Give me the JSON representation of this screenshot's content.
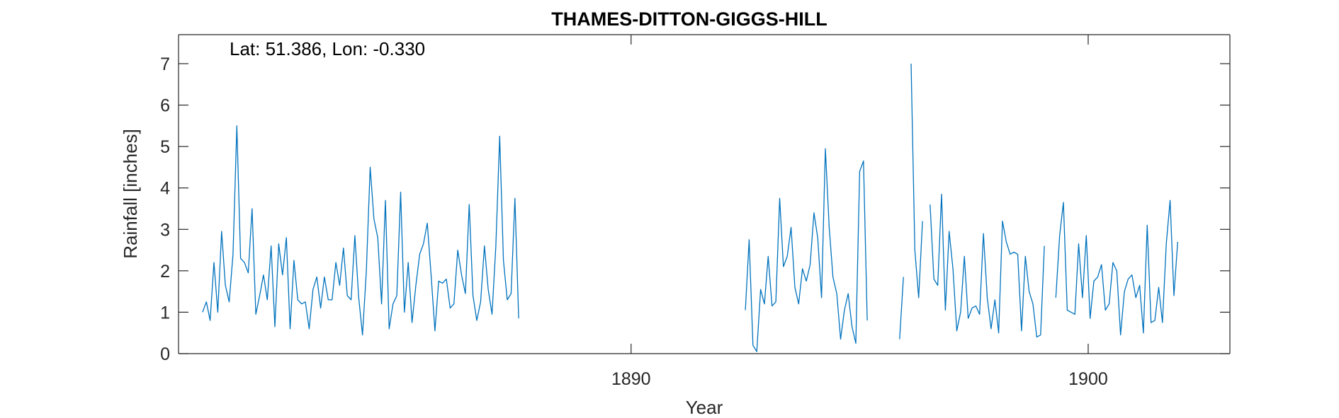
{
  "chart_data": {
    "type": "line",
    "title": "THAMES-DITTON-GIGGS-HILL",
    "annotation": "Lat: 51.386, Lon: -0.330",
    "xlabel": "Year",
    "ylabel": "Rainfall [inches]",
    "xlim": [
      1880.1,
      1903.1
    ],
    "ylim": [
      0,
      7.7
    ],
    "xticks": [
      1890,
      1900
    ],
    "xtick_labels": [
      "1890",
      "1900"
    ],
    "yticks": [
      0,
      1,
      2,
      3,
      4,
      5,
      6,
      7
    ],
    "ytick_labels": [
      "0",
      "1",
      "2",
      "3",
      "4",
      "5",
      "6",
      "7"
    ],
    "grid": false,
    "series_color": "#0072BD",
    "segments": [
      {
        "start_year": 1880.625,
        "values": [
          1.0,
          1.25,
          0.8,
          2.2,
          1.0,
          2.95,
          1.65,
          1.25,
          2.4,
          5.5,
          2.3,
          2.2,
          1.95,
          3.5,
          0.95,
          1.4,
          1.9,
          1.3,
          2.6,
          0.65,
          2.65,
          1.9,
          2.8,
          0.6,
          2.25,
          1.3,
          1.2,
          1.25,
          0.6,
          1.55,
          1.85,
          1.1,
          1.85,
          1.3,
          1.3,
          2.2,
          1.65,
          2.55,
          1.4,
          1.3,
          2.85,
          1.35,
          0.45,
          2.0,
          4.5,
          3.25,
          2.8,
          1.2,
          3.7,
          0.6,
          1.2,
          1.4,
          3.9,
          1.0,
          2.2,
          0.75,
          1.65,
          2.4,
          2.65,
          3.15,
          1.9,
          0.55,
          1.75,
          1.7,
          1.8,
          1.1,
          1.2,
          2.5,
          1.9,
          1.45,
          3.6,
          1.4,
          0.8,
          1.25,
          2.6,
          1.55,
          0.95,
          2.6,
          5.25,
          2.25,
          1.3,
          1.45,
          3.75,
          0.85
        ]
      },
      {
        "start_year": 1892.5,
        "values": [
          1.05,
          2.75,
          0.2,
          0.05,
          1.55,
          1.2,
          2.35,
          1.15,
          1.25,
          3.75,
          2.1,
          2.35,
          3.05,
          1.6,
          1.2,
          2.05,
          1.75,
          2.15,
          3.4,
          2.8,
          1.35,
          4.95,
          3.05,
          1.85,
          1.45,
          0.35,
          1.05,
          1.45,
          0.65,
          0.25,
          4.4,
          4.65,
          0.8
        ]
      },
      {
        "start_year": 1895.875,
        "values": [
          0.35,
          1.85,
          null,
          7.0,
          2.5,
          1.35,
          3.2,
          null,
          3.6,
          1.8,
          1.65,
          3.85,
          1.05,
          2.95,
          2.05,
          0.55,
          1.0,
          2.35,
          0.85,
          1.1,
          1.15,
          0.95,
          2.9,
          1.35,
          0.6,
          1.3,
          0.5,
          3.2,
          2.7,
          2.4,
          2.45,
          2.4,
          0.55,
          2.35,
          1.5,
          1.2,
          0.4,
          0.45,
          2.6,
          null,
          null,
          1.35,
          2.85,
          3.65,
          1.05,
          1.0,
          0.95,
          2.65,
          1.35,
          2.85,
          0.85,
          1.75,
          1.85,
          2.15,
          1.05,
          1.2,
          2.2,
          2.0,
          0.45,
          1.5,
          1.8,
          1.9,
          1.35,
          1.65,
          0.5,
          3.1,
          0.75,
          0.8,
          1.6,
          0.75,
          2.65,
          3.7,
          1.4,
          2.7
        ]
      }
    ]
  }
}
